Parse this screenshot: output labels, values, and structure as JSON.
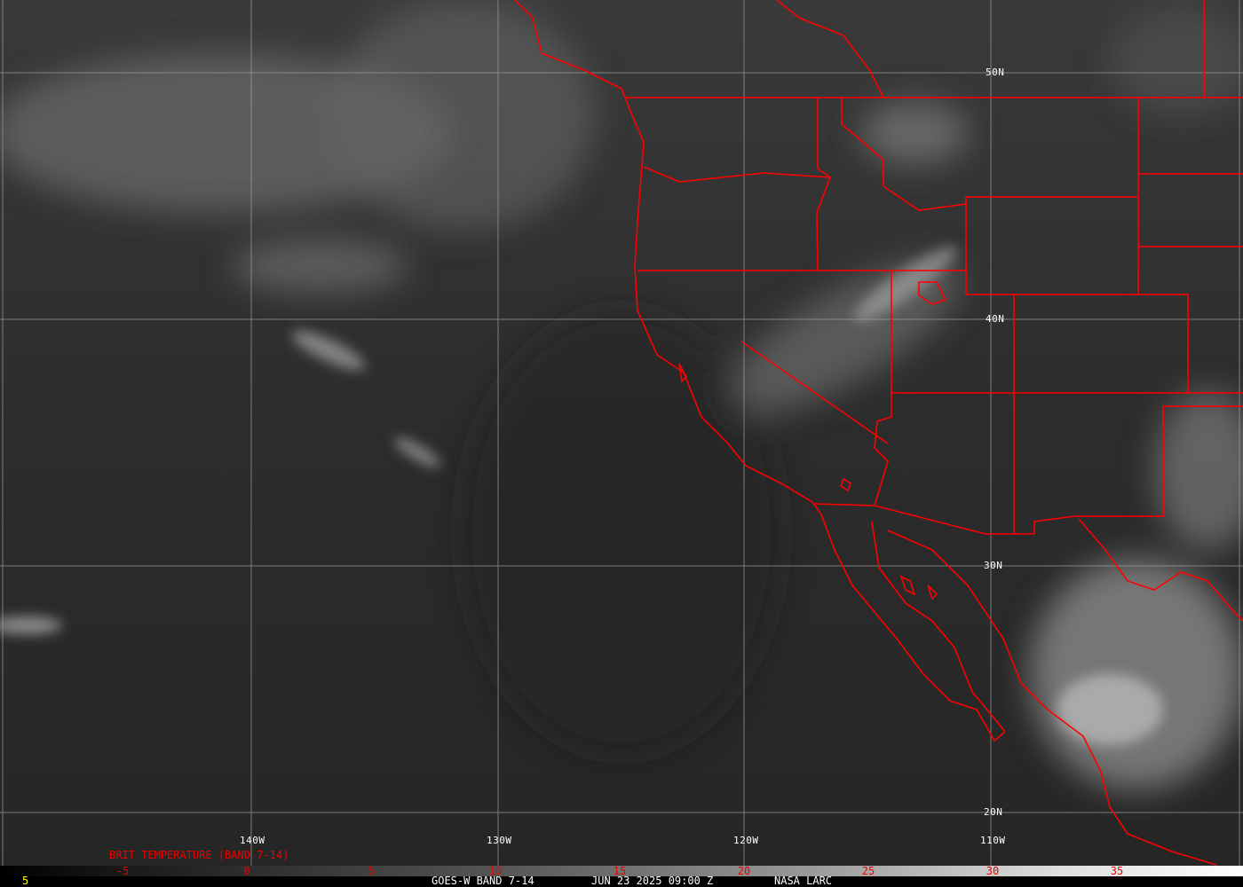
{
  "colors": {
    "border": "#ff0000",
    "grid": "#a0a0a0",
    "tick_labels": "#dd0000",
    "footer_text": "#ffffff",
    "frame_number": "#ffff00"
  },
  "latitude_labels": [
    "50N",
    "40N",
    "30N",
    "20N"
  ],
  "longitude_labels": [
    "140W",
    "130W",
    "120W",
    "110W"
  ],
  "colorbar": {
    "title": "BRIT TEMPERATURE (BAND 7-14)",
    "ticks": [
      "-5",
      "0",
      "5",
      "10",
      "15",
      "20",
      "25",
      "30",
      "35"
    ]
  },
  "footer": {
    "frame": "5",
    "product": "GOES-W BAND 7-14",
    "datetime": "JUN 23 2025 09:00 Z",
    "source": "NASA LARC"
  }
}
